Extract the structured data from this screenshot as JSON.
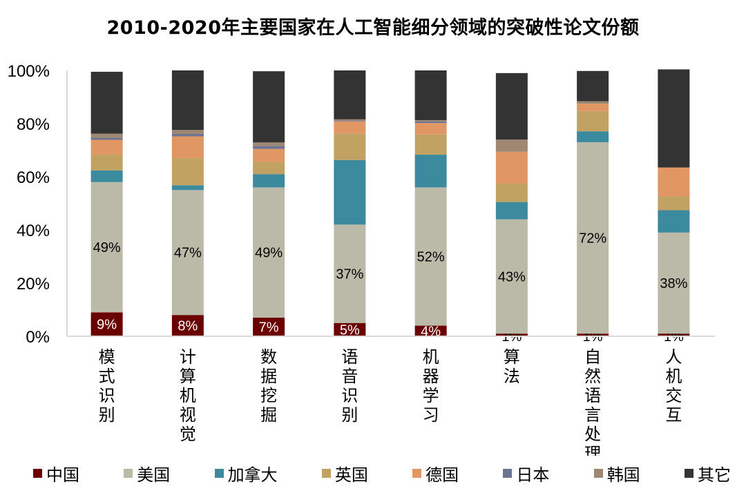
{
  "chart_data": {
    "type": "bar",
    "stacked": true,
    "title": "2010-2020年主要国家在人工智能细分领域的突破性论文份额",
    "xlabel": "",
    "ylabel": "",
    "ylim": [
      0,
      100
    ],
    "yticks": [
      "0%",
      "20%",
      "40%",
      "60%",
      "80%",
      "100%"
    ],
    "grid": false,
    "legend_position": "bottom",
    "categories": [
      "模式识别",
      "计算机视觉",
      "数据挖掘",
      "语音识别",
      "机器学习",
      "算法",
      "自然语言处理",
      "人机交互"
    ],
    "series": [
      {
        "name": "中国",
        "color": "#6b0000",
        "values": [
          9,
          8,
          7,
          5,
          4,
          1,
          1,
          1
        ],
        "labels": [
          "9%",
          "8%",
          "7%",
          "5%",
          "4%",
          "1%",
          "1%",
          "1%"
        ]
      },
      {
        "name": "美国",
        "color": "#bbb9a8",
        "values": [
          49,
          47,
          49,
          37,
          52,
          43,
          72,
          38
        ],
        "labels": [
          "49%",
          "47%",
          "49%",
          "37%",
          "52%",
          "43%",
          "72%",
          "38%"
        ]
      },
      {
        "name": "加拿大",
        "color": "#3b8a9e",
        "values": [
          4.4,
          1.8,
          5.0,
          24.3,
          12.3,
          6.5,
          4.1,
          8.4
        ]
      },
      {
        "name": "英国",
        "color": "#c1a263",
        "values": [
          5.9,
          10.2,
          4.6,
          10.0,
          7.6,
          6.9,
          7.6,
          5.2
        ]
      },
      {
        "name": "德国",
        "color": "#e09763",
        "values": [
          5.6,
          8.2,
          4.9,
          4.6,
          4.3,
          12.0,
          2.8,
          10.9
        ]
      },
      {
        "name": "日本",
        "color": "#6d7491",
        "values": [
          0.8,
          0.9,
          1.1,
          0.3,
          0.6,
          0,
          0,
          0
        ]
      },
      {
        "name": "韩国",
        "color": "#9e8872",
        "values": [
          1.5,
          1.5,
          1.3,
          0.4,
          0.5,
          4.6,
          0.9,
          0
        ]
      },
      {
        "name": "其它",
        "color": "#333333",
        "values": [
          23.3,
          22.4,
          26.8,
          18.4,
          18.7,
          25.0,
          11.4,
          36.9
        ]
      }
    ]
  }
}
